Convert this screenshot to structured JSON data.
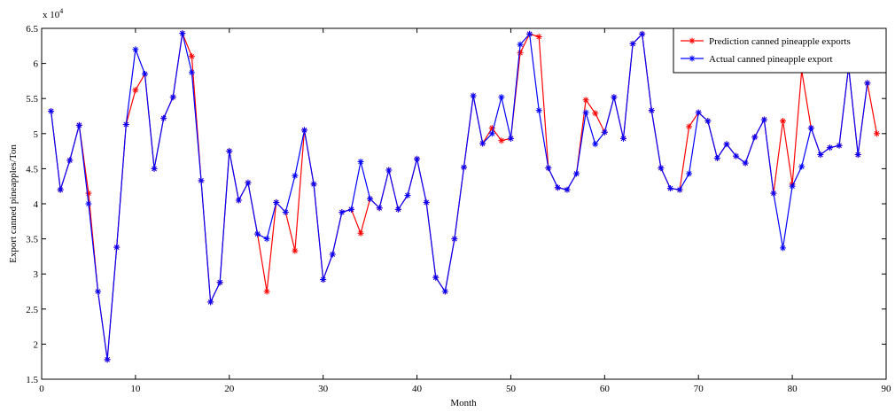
{
  "chart_data": {
    "type": "line",
    "y_multiplier_base": "x 10",
    "y_multiplier_exponent": "4",
    "xlabel": "Month",
    "ylabel": "Export canned pineapples/Ton",
    "x": [
      1,
      2,
      3,
      4,
      5,
      6,
      7,
      8,
      9,
      10,
      11,
      12,
      13,
      14,
      15,
      16,
      17,
      18,
      19,
      20,
      21,
      22,
      23,
      24,
      25,
      26,
      27,
      28,
      29,
      30,
      31,
      32,
      33,
      34,
      35,
      36,
      37,
      38,
      39,
      40,
      41,
      42,
      43,
      44,
      45,
      46,
      47,
      48,
      49,
      50,
      51,
      52,
      53,
      54,
      55,
      56,
      57,
      58,
      59,
      60,
      61,
      62,
      63,
      64,
      65,
      66,
      67,
      68,
      69,
      70,
      71,
      72,
      73,
      74,
      75,
      76,
      77,
      78,
      79,
      80,
      81,
      82,
      83,
      84,
      85,
      86,
      87,
      88,
      89
    ],
    "series": [
      {
        "name": "Prediction canned pineapple exports",
        "color": "#ff0000",
        "marker": "*",
        "values": [
          5.32,
          4.2,
          4.62,
          5.12,
          4.15,
          2.75,
          1.78,
          3.38,
          5.13,
          5.62,
          5.85,
          4.5,
          5.22,
          5.52,
          6.43,
          6.1,
          4.33,
          2.6,
          2.88,
          4.75,
          4.05,
          4.3,
          3.57,
          2.75,
          4.02,
          3.88,
          3.33,
          5.05,
          4.28,
          2.92,
          3.28,
          3.88,
          3.92,
          3.58,
          4.07,
          3.94,
          4.48,
          3.92,
          4.12,
          4.64,
          4.02,
          2.95,
          2.75,
          3.5,
          4.52,
          5.54,
          4.86,
          5.08,
          4.9,
          4.93,
          6.15,
          6.42,
          6.38,
          4.51,
          4.23,
          4.2,
          4.43,
          5.48,
          5.29,
          5.02,
          5.52,
          4.93,
          6.28,
          6.42,
          5.33,
          4.51,
          4.22,
          4.2,
          5.1,
          5.3,
          5.18,
          4.65,
          4.85,
          4.68,
          4.58,
          4.95,
          5.2,
          4.15,
          5.18,
          4.28,
          5.9,
          5.08,
          4.7,
          4.8,
          4.83,
          5.95,
          4.7,
          5.72,
          5.0
        ]
      },
      {
        "name": "Actual canned pineapple export",
        "color": "#0000ff",
        "marker": "*",
        "values": [
          5.32,
          4.2,
          4.62,
          5.12,
          4.0,
          2.75,
          1.78,
          3.38,
          5.13,
          6.2,
          5.85,
          4.5,
          5.22,
          5.52,
          6.43,
          5.87,
          4.33,
          2.6,
          2.88,
          4.75,
          4.05,
          4.3,
          3.57,
          3.5,
          4.02,
          3.88,
          4.4,
          5.05,
          4.28,
          2.92,
          3.28,
          3.88,
          3.92,
          4.6,
          4.07,
          3.94,
          4.48,
          3.92,
          4.12,
          4.64,
          4.02,
          2.95,
          2.75,
          3.5,
          4.52,
          5.54,
          4.86,
          5.0,
          5.52,
          4.93,
          6.27,
          6.42,
          5.33,
          4.51,
          4.23,
          4.2,
          4.43,
          5.3,
          4.85,
          5.02,
          5.52,
          4.93,
          6.28,
          6.42,
          5.33,
          4.51,
          4.22,
          4.2,
          4.43,
          5.3,
          5.18,
          4.65,
          4.85,
          4.68,
          4.58,
          4.95,
          5.2,
          4.15,
          3.37,
          4.25,
          4.53,
          5.08,
          4.7,
          4.8,
          4.83,
          5.95,
          4.7,
          5.72,
          null
        ]
      }
    ],
    "xlim": [
      0,
      90
    ],
    "xticks": [
      0,
      10,
      20,
      30,
      40,
      50,
      60,
      70,
      80,
      90
    ],
    "ylim": [
      1.5,
      6.5
    ],
    "yticks": [
      1.5,
      2,
      2.5,
      3,
      3.5,
      4,
      4.5,
      5,
      5.5,
      6,
      6.5
    ],
    "grid": false,
    "legend": "upper right"
  }
}
